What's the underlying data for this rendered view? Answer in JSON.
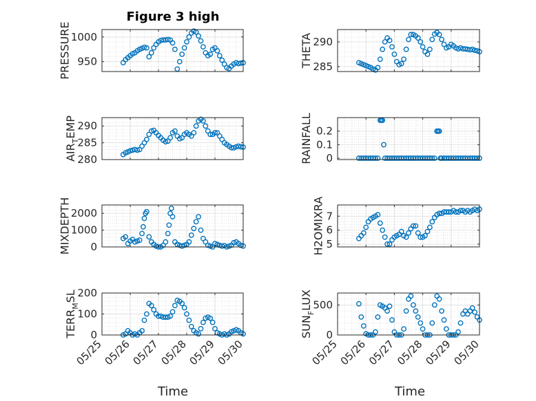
{
  "figure": {
    "title": "Figure 3 high"
  },
  "chart_data": [
    {
      "type": "scatter",
      "ylabel": "PRESSURE",
      "xlabel": "",
      "xlim": [
        "05/25",
        "05/30"
      ],
      "ylim": [
        930,
        1015
      ],
      "yticks": [
        950,
        1000
      ],
      "xticks": [],
      "grid": true,
      "minor_grid": true,
      "x": [
        "05/25 18:00",
        "05/25 20:00",
        "05/25 22:00",
        "05/26 00:00",
        "05/26 02:00",
        "05/26 04:00",
        "05/26 06:00",
        "05/26 08:00",
        "05/26 10:00",
        "05/26 12:00",
        "05/26 14:00",
        "05/26 16:00",
        "05/26 18:00",
        "05/26 20:00",
        "05/26 22:00",
        "05/27 00:00",
        "05/27 02:00",
        "05/27 04:00",
        "05/27 06:00",
        "05/27 08:00",
        "05/27 10:00",
        "05/27 12:00",
        "05/27 14:00",
        "05/27 16:00",
        "05/27 18:00",
        "05/27 20:00",
        "05/27 22:00",
        "05/28 00:00",
        "05/28 02:00",
        "05/28 04:00",
        "05/28 06:00",
        "05/28 08:00",
        "05/28 10:00",
        "05/28 12:00",
        "05/28 14:00",
        "05/28 16:00",
        "05/28 18:00",
        "05/28 20:00",
        "05/28 22:00",
        "05/29 00:00",
        "05/29 02:00",
        "05/29 04:00",
        "05/29 06:00",
        "05/29 08:00",
        "05/29 10:00",
        "05/29 12:00",
        "05/29 14:00",
        "05/29 16:00",
        "05/29 18:00",
        "05/29 20:00",
        "05/29 22:00",
        "05/30 00:00"
      ],
      "y": [
        948,
        954,
        958,
        962,
        966,
        968,
        972,
        975,
        977,
        979,
        978,
        960,
        968,
        978,
        985,
        990,
        993,
        994,
        994,
        995,
        994,
        988,
        975,
        935,
        950,
        965,
        978,
        990,
        1000,
        1008,
        1012,
        1010,
        1002,
        992,
        980,
        968,
        962,
        965,
        975,
        978,
        972,
        962,
        953,
        945,
        938,
        936,
        941,
        945,
        948,
        946,
        947,
        948
      ]
    },
    {
      "type": "scatter",
      "ylabel": "THETA",
      "xlabel": "",
      "xlim": [
        "05/25",
        "05/30"
      ],
      "ylim": [
        284,
        292.5
      ],
      "yticks": [
        285,
        290
      ],
      "xticks": [],
      "grid": true,
      "minor_grid": true,
      "x": [
        "05/25 18:00",
        "05/25 20:00",
        "05/25 22:00",
        "05/26 00:00",
        "05/26 02:00",
        "05/26 04:00",
        "05/26 06:00",
        "05/26 08:00",
        "05/26 10:00",
        "05/26 12:00",
        "05/26 14:00",
        "05/26 16:00",
        "05/26 18:00",
        "05/26 20:00",
        "05/26 22:00",
        "05/27 00:00",
        "05/27 02:00",
        "05/27 04:00",
        "05/27 06:00",
        "05/27 08:00",
        "05/27 10:00",
        "05/27 12:00",
        "05/27 14:00",
        "05/27 16:00",
        "05/27 18:00",
        "05/27 20:00",
        "05/27 22:00",
        "05/28 00:00",
        "05/28 02:00",
        "05/28 04:00",
        "05/28 06:00",
        "05/28 08:00",
        "05/28 10:00",
        "05/28 12:00",
        "05/28 14:00",
        "05/28 16:00",
        "05/28 18:00",
        "05/28 20:00",
        "05/28 22:00",
        "05/29 00:00",
        "05/29 02:00",
        "05/29 04:00",
        "05/29 06:00",
        "05/29 08:00",
        "05/29 10:00",
        "05/29 12:00",
        "05/29 14:00",
        "05/29 16:00",
        "05/29 18:00",
        "05/29 20:00",
        "05/29 22:00",
        "05/30 00:00"
      ],
      "y": [
        285.8,
        285.6,
        285.4,
        285.2,
        285,
        284.8,
        284.5,
        284.3,
        284.8,
        286.5,
        288.5,
        290,
        290.8,
        290.3,
        289,
        287.5,
        286,
        285.4,
        285.6,
        286.5,
        288.5,
        290.5,
        291.5,
        291.5,
        291.2,
        290.8,
        290,
        289,
        288,
        287.5,
        288.5,
        290.5,
        291.6,
        291.9,
        291.5,
        290.5,
        289.5,
        288.8,
        289,
        289.5,
        289.2,
        288.8,
        288.6,
        288.8,
        288.6,
        288.6,
        288.5,
        288.4,
        288.5,
        288.3,
        288.2,
        288
      ]
    },
    {
      "type": "scatter",
      "ylabel": "AIR_TEMP",
      "xlabel": "",
      "xlim": [
        "05/25",
        "05/30"
      ],
      "ylim": [
        280,
        292.5
      ],
      "yticks": [
        280,
        285,
        290
      ],
      "xticks": [],
      "grid": true,
      "minor_grid": true,
      "x": [
        "05/25 18:00",
        "05/25 20:00",
        "05/25 22:00",
        "05/26 00:00",
        "05/26 02:00",
        "05/26 04:00",
        "05/26 06:00",
        "05/26 08:00",
        "05/26 10:00",
        "05/26 12:00",
        "05/26 14:00",
        "05/26 16:00",
        "05/26 18:00",
        "05/26 20:00",
        "05/26 22:00",
        "05/27 00:00",
        "05/27 02:00",
        "05/27 04:00",
        "05/27 06:00",
        "05/27 08:00",
        "05/27 10:00",
        "05/27 12:00",
        "05/27 14:00",
        "05/27 16:00",
        "05/27 18:00",
        "05/27 20:00",
        "05/27 22:00",
        "05/28 00:00",
        "05/28 02:00",
        "05/28 04:00",
        "05/28 06:00",
        "05/28 08:00",
        "05/28 10:00",
        "05/28 12:00",
        "05/28 14:00",
        "05/28 16:00",
        "05/28 18:00",
        "05/28 20:00",
        "05/28 22:00",
        "05/29 00:00",
        "05/29 02:00",
        "05/29 04:00",
        "05/29 06:00",
        "05/29 08:00",
        "05/29 10:00",
        "05/29 12:00",
        "05/29 14:00",
        "05/29 16:00",
        "05/29 18:00",
        "05/29 20:00",
        "05/29 22:00",
        "05/30 00:00"
      ],
      "y": [
        281.5,
        282,
        282.3,
        282.6,
        282.8,
        283,
        282.8,
        283,
        284,
        285,
        286,
        287.5,
        288.5,
        288.7,
        288,
        287.2,
        286.5,
        285.8,
        285.3,
        285.5,
        286.5,
        288,
        288.5,
        287,
        286.2,
        286.5,
        287.5,
        288,
        287.5,
        287,
        288,
        290,
        291.5,
        292,
        291.5,
        290,
        288.5,
        287.5,
        287.5,
        288,
        288,
        287,
        286,
        285,
        284.5,
        284,
        283.5,
        283.5,
        283.8,
        284,
        283.8,
        283.7
      ]
    },
    {
      "type": "scatter",
      "ylabel": "RAINFALL",
      "xlabel": "",
      "xlim": [
        "05/25",
        "05/30"
      ],
      "ylim": [
        -0.01,
        0.3
      ],
      "yticks": [
        0,
        0.1,
        0.2
      ],
      "xticks": [],
      "grid": true,
      "minor_grid": true,
      "x": [
        "05/25 18:00",
        "05/25 20:00",
        "05/25 22:00",
        "05/26 00:00",
        "05/26 02:00",
        "05/26 04:00",
        "05/26 06:00",
        "05/26 08:00",
        "05/26 10:00",
        "05/26 12:00",
        "05/26 13:00",
        "05/26 14:00",
        "05/26 15:00",
        "05/26 16:00",
        "05/26 18:00",
        "05/26 20:00",
        "05/26 22:00",
        "05/27 00:00",
        "05/27 02:00",
        "05/27 04:00",
        "05/27 06:00",
        "05/27 08:00",
        "05/27 10:00",
        "05/27 12:00",
        "05/27 14:00",
        "05/27 16:00",
        "05/27 18:00",
        "05/27 20:00",
        "05/27 22:00",
        "05/28 00:00",
        "05/28 02:00",
        "05/28 04:00",
        "05/28 06:00",
        "05/28 08:00",
        "05/28 10:00",
        "05/28 12:00",
        "05/28 13:00",
        "05/28 14:00",
        "05/28 15:00",
        "05/28 16:00",
        "05/28 18:00",
        "05/28 20:00",
        "05/28 22:00",
        "05/29 00:00",
        "05/29 02:00",
        "05/29 04:00",
        "05/29 06:00",
        "05/29 08:00",
        "05/29 10:00",
        "05/29 12:00",
        "05/29 14:00",
        "05/29 16:00",
        "05/29 18:00",
        "05/29 20:00",
        "05/29 22:00",
        "05/30 00:00"
      ],
      "y": [
        0,
        0,
        0,
        0,
        0,
        0,
        0,
        0,
        0,
        0.28,
        0.28,
        0.28,
        0.1,
        0,
        0,
        0,
        0,
        0,
        0,
        0,
        0,
        0,
        0,
        0,
        0,
        0,
        0,
        0,
        0,
        0,
        0,
        0,
        0,
        0,
        0,
        0.2,
        0.2,
        0.2,
        0,
        0,
        0,
        0,
        0,
        0,
        0,
        0,
        0,
        0,
        0,
        0,
        0,
        0,
        0,
        0,
        0,
        0
      ]
    },
    {
      "type": "scatter",
      "ylabel": "MIXDEPTH",
      "xlabel": "",
      "xlim": [
        "05/25",
        "05/30"
      ],
      "ylim": [
        0,
        2500
      ],
      "yticks": [
        0,
        1000,
        2000
      ],
      "xticks": [],
      "grid": true,
      "minor_grid": true,
      "x": [
        "05/25 18:00",
        "05/25 20:00",
        "05/25 22:00",
        "05/26 00:00",
        "05/26 02:00",
        "05/26 04:00",
        "05/26 06:00",
        "05/26 08:00",
        "05/26 10:00",
        "05/26 11:00",
        "05/26 12:00",
        "05/26 13:00",
        "05/26 14:00",
        "05/26 16:00",
        "05/26 18:00",
        "05/26 20:00",
        "05/26 22:00",
        "05/27 00:00",
        "05/27 02:00",
        "05/27 04:00",
        "05/27 06:00",
        "05/27 08:00",
        "05/27 09:00",
        "05/27 10:00",
        "05/27 11:00",
        "05/27 12:00",
        "05/27 14:00",
        "05/27 16:00",
        "05/27 18:00",
        "05/27 20:00",
        "05/27 22:00",
        "05/28 00:00",
        "05/28 02:00",
        "05/28 04:00",
        "05/28 06:00",
        "05/28 08:00",
        "05/28 10:00",
        "05/28 12:00",
        "05/28 14:00",
        "05/28 16:00",
        "05/28 18:00",
        "05/28 20:00",
        "05/28 22:00",
        "05/29 00:00",
        "05/29 02:00",
        "05/29 04:00",
        "05/29 06:00",
        "05/29 08:00",
        "05/29 10:00",
        "05/29 12:00",
        "05/29 14:00",
        "05/29 16:00",
        "05/29 18:00",
        "05/29 20:00",
        "05/29 22:00",
        "05/30 00:00"
      ],
      "y": [
        500,
        600,
        200,
        350,
        450,
        300,
        350,
        400,
        800,
        1200,
        1700,
        2000,
        2100,
        600,
        300,
        150,
        50,
        0,
        0,
        100,
        300,
        800,
        1300,
        2000,
        2300,
        1800,
        300,
        150,
        100,
        50,
        100,
        150,
        300,
        700,
        1100,
        1500,
        1800,
        1000,
        500,
        300,
        100,
        50,
        0,
        200,
        150,
        100,
        50,
        80,
        0,
        50,
        100,
        250,
        300,
        200,
        100,
        50
      ]
    },
    {
      "type": "scatter",
      "ylabel": "H2OMIXRA",
      "xlabel": "",
      "xlim": [
        "05/25",
        "05/30"
      ],
      "ylim": [
        4.8,
        7.8
      ],
      "yticks": [
        5,
        6,
        7
      ],
      "xticks": [],
      "grid": true,
      "minor_grid": true,
      "x": [
        "05/25 18:00",
        "05/25 20:00",
        "05/25 22:00",
        "05/26 00:00",
        "05/26 02:00",
        "05/26 04:00",
        "05/26 06:00",
        "05/26 08:00",
        "05/26 10:00",
        "05/26 12:00",
        "05/26 14:00",
        "05/26 16:00",
        "05/26 18:00",
        "05/26 20:00",
        "05/26 22:00",
        "05/27 00:00",
        "05/27 02:00",
        "05/27 04:00",
        "05/27 06:00",
        "05/27 08:00",
        "05/27 10:00",
        "05/27 12:00",
        "05/27 14:00",
        "05/27 16:00",
        "05/27 18:00",
        "05/27 20:00",
        "05/27 22:00",
        "05/28 00:00",
        "05/28 02:00",
        "05/28 04:00",
        "05/28 06:00",
        "05/28 08:00",
        "05/28 10:00",
        "05/28 12:00",
        "05/28 14:00",
        "05/28 16:00",
        "05/28 18:00",
        "05/28 20:00",
        "05/28 22:00",
        "05/29 00:00",
        "05/29 02:00",
        "05/29 04:00",
        "05/29 06:00",
        "05/29 08:00",
        "05/29 10:00",
        "05/29 12:00",
        "05/29 14:00",
        "05/29 16:00",
        "05/29 18:00",
        "05/29 20:00",
        "05/29 22:00",
        "05/30 00:00"
      ],
      "y": [
        5.4,
        5.6,
        5.8,
        6.2,
        6.6,
        6.8,
        6.9,
        7.0,
        7.1,
        6.5,
        6.0,
        5.5,
        5.0,
        5.0,
        5.3,
        5.5,
        5.6,
        5.7,
        5.9,
        5.6,
        5.5,
        5.8,
        6.1,
        6.3,
        6.3,
        5.8,
        5.5,
        5.5,
        5.6,
        5.9,
        6.2,
        6.6,
        6.9,
        7.1,
        7.2,
        7.2,
        7.3,
        7.3,
        7.3,
        7.3,
        7.4,
        7.3,
        7.3,
        7.4,
        7.4,
        7.3,
        7.4,
        7.3,
        7.4,
        7.5,
        7.4,
        7.5
      ]
    },
    {
      "type": "scatter",
      "ylabel": "TERR_MSL",
      "xlabel": "",
      "xlim": [
        "05/25",
        "05/30"
      ],
      "ylim": [
        0,
        200
      ],
      "yticks": [
        0,
        100,
        200
      ],
      "xticks": [
        "05/25",
        "05/26",
        "05/27",
        "05/28",
        "05/29",
        "05/30"
      ],
      "grid": true,
      "minor_grid": true,
      "x": [
        "05/25 18:00",
        "05/25 20:00",
        "05/25 22:00",
        "05/26 00:00",
        "05/26 02:00",
        "05/26 04:00",
        "05/26 06:00",
        "05/26 08:00",
        "05/26 10:00",
        "05/26 12:00",
        "05/26 14:00",
        "05/26 16:00",
        "05/26 18:00",
        "05/26 20:00",
        "05/26 22:00",
        "05/27 00:00",
        "05/27 02:00",
        "05/27 04:00",
        "05/27 06:00",
        "05/27 08:00",
        "05/27 10:00",
        "05/27 12:00",
        "05/27 14:00",
        "05/27 16:00",
        "05/27 18:00",
        "05/27 20:00",
        "05/27 22:00",
        "05/28 00:00",
        "05/28 02:00",
        "05/28 04:00",
        "05/28 06:00",
        "05/28 08:00",
        "05/28 10:00",
        "05/28 12:00",
        "05/28 14:00",
        "05/28 16:00",
        "05/28 18:00",
        "05/28 20:00",
        "05/28 22:00",
        "05/29 00:00",
        "05/29 02:00",
        "05/29 04:00",
        "05/29 06:00",
        "05/29 08:00",
        "05/29 10:00",
        "05/29 12:00",
        "05/29 14:00",
        "05/29 16:00",
        "05/29 18:00",
        "05/29 20:00",
        "05/29 22:00",
        "05/30 00:00"
      ],
      "y": [
        0,
        5,
        20,
        10,
        0,
        5,
        0,
        10,
        20,
        70,
        100,
        150,
        140,
        120,
        100,
        90,
        90,
        85,
        85,
        85,
        90,
        110,
        140,
        165,
        160,
        150,
        130,
        100,
        70,
        40,
        20,
        10,
        5,
        30,
        60,
        80,
        85,
        80,
        60,
        30,
        10,
        5,
        0,
        5,
        0,
        5,
        15,
        20,
        25,
        20,
        10,
        5
      ]
    },
    {
      "type": "scatter",
      "ylabel": "SUN_FLUX",
      "xlabel": "",
      "xlim": [
        "05/25",
        "05/30"
      ],
      "ylim": [
        0,
        700
      ],
      "yticks": [
        0,
        500
      ],
      "xticks": [
        "05/25",
        "05/26",
        "05/27",
        "05/28",
        "05/29",
        "05/30"
      ],
      "grid": true,
      "minor_grid": true,
      "x": [
        "05/25 18:00",
        "05/25 20:00",
        "05/25 22:00",
        "05/26 00:00",
        "05/26 02:00",
        "05/26 04:00",
        "05/26 06:00",
        "05/26 08:00",
        "05/26 10:00",
        "05/26 12:00",
        "05/26 14:00",
        "05/26 16:00",
        "05/26 18:00",
        "05/26 20:00",
        "05/26 22:00",
        "05/27 00:00",
        "05/27 02:00",
        "05/27 04:00",
        "05/27 06:00",
        "05/27 08:00",
        "05/27 10:00",
        "05/27 12:00",
        "05/27 14:00",
        "05/27 16:00",
        "05/27 18:00",
        "05/27 20:00",
        "05/27 22:00",
        "05/28 00:00",
        "05/28 02:00",
        "05/28 04:00",
        "05/28 06:00",
        "05/28 08:00",
        "05/28 10:00",
        "05/28 12:00",
        "05/28 14:00",
        "05/28 16:00",
        "05/28 18:00",
        "05/28 20:00",
        "05/28 22:00",
        "05/29 00:00",
        "05/29 02:00",
        "05/29 04:00",
        "05/29 06:00",
        "05/29 08:00",
        "05/29 10:00",
        "05/29 12:00",
        "05/29 14:00",
        "05/29 16:00",
        "05/29 18:00",
        "05/29 20:00",
        "05/29 22:00",
        "05/30 00:00"
      ],
      "y": [
        520,
        300,
        150,
        20,
        0,
        0,
        0,
        50,
        300,
        500,
        480,
        450,
        400,
        480,
        250,
        50,
        0,
        0,
        0,
        100,
        400,
        600,
        650,
        500,
        400,
        300,
        200,
        100,
        0,
        0,
        0,
        200,
        500,
        650,
        600,
        400,
        250,
        100,
        0,
        0,
        0,
        0,
        50,
        200,
        350,
        400,
        350,
        400,
        450,
        380,
        300,
        250
      ]
    }
  ],
  "xaxis_label": "Time",
  "styles": {
    "marker_color": "#0072BD",
    "axis_color": "#262626",
    "grid_color": "#DFDFDF"
  }
}
